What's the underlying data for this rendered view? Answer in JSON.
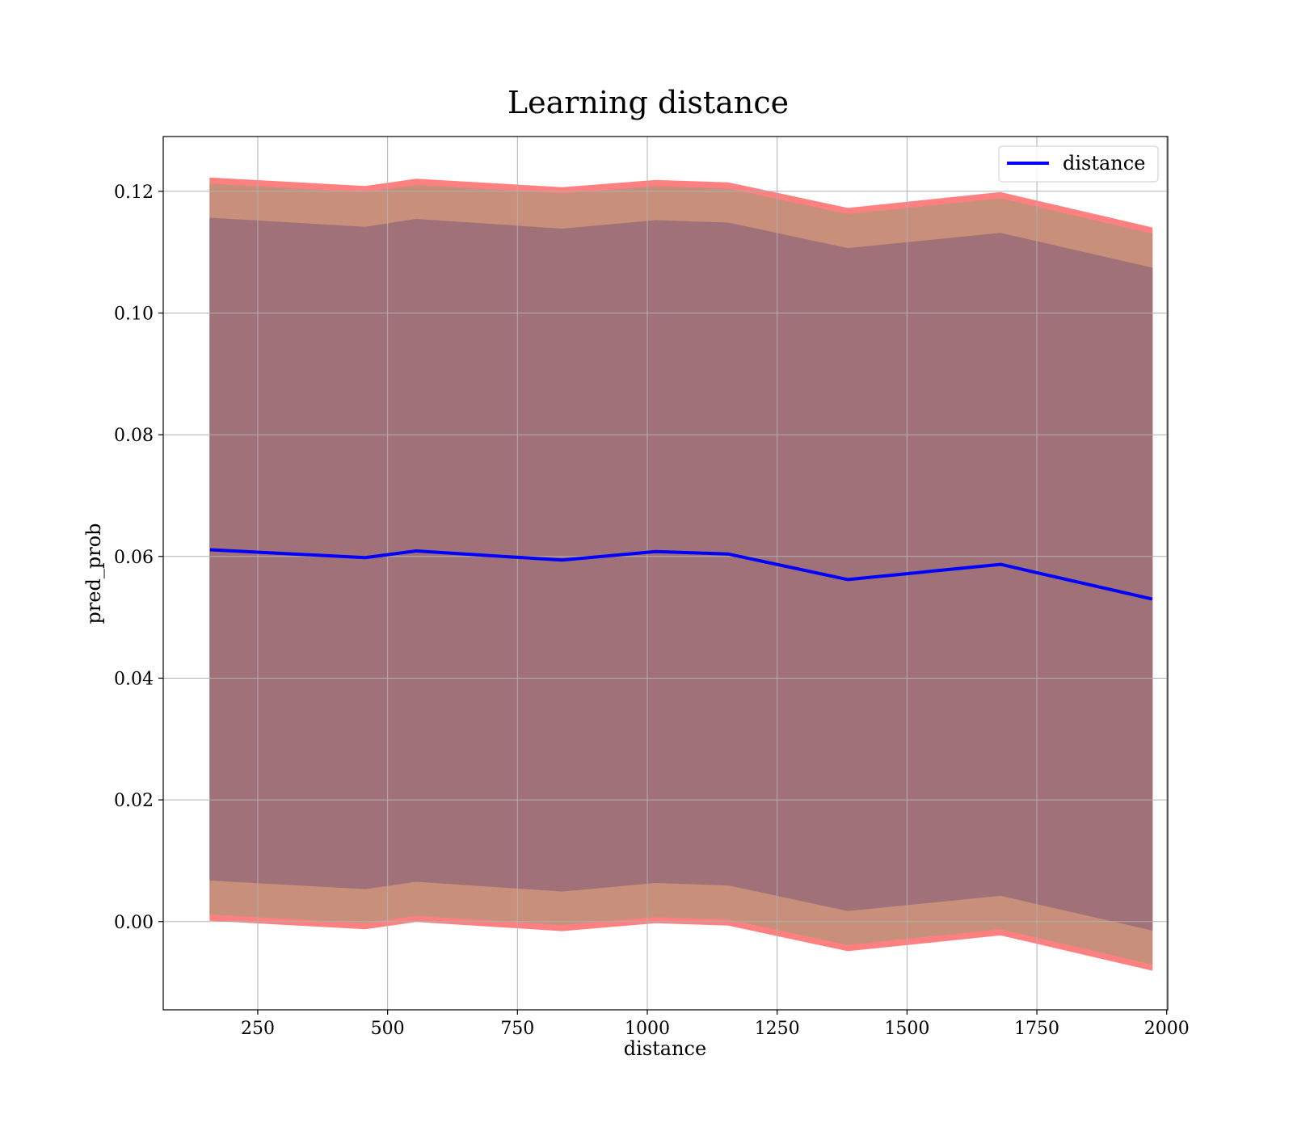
{
  "chart_data": {
    "type": "line",
    "title": "Learning distance",
    "xlabel": "distance",
    "ylabel": "pred_prob",
    "xlim": [
      68,
      2002
    ],
    "ylim": [
      -0.0145,
      0.129
    ],
    "xticks": [
      250,
      500,
      750,
      1000,
      1250,
      1500,
      1750,
      2000
    ],
    "xtick_labels": [
      "250",
      "500",
      "750",
      "1000",
      "1250",
      "1500",
      "1750",
      "2000"
    ],
    "yticks": [
      0.0,
      0.02,
      0.04,
      0.06,
      0.08,
      0.1,
      0.12
    ],
    "ytick_labels": [
      "0.00",
      "0.02",
      "0.04",
      "0.06",
      "0.08",
      "0.10",
      "0.12"
    ],
    "grid": true,
    "legend_position": "top-right",
    "x": [
      158,
      457,
      555,
      836,
      1016,
      1156,
      1386,
      1680,
      1972
    ],
    "series": [
      {
        "name": "distance",
        "color": "#0000ff",
        "values": [
          0.0611,
          0.0598,
          0.0609,
          0.0594,
          0.0608,
          0.0604,
          0.0562,
          0.0587,
          0.053
        ]
      }
    ],
    "bands": [
      {
        "color": "#ff8080",
        "upper": [
          0.1222,
          0.1208,
          0.122,
          0.1206,
          0.1218,
          0.1214,
          0.1172,
          0.1198,
          0.114
        ],
        "lower": [
          0.0002,
          -0.0012,
          0.0,
          -0.0015,
          -0.0002,
          -0.0006,
          -0.0048,
          -0.0022,
          -0.008
        ]
      },
      {
        "color": "#c8907a",
        "upper": [
          0.1212,
          0.1198,
          0.121,
          0.1196,
          0.1208,
          0.1204,
          0.1162,
          0.1188,
          0.113
        ],
        "lower": [
          0.0012,
          -0.0002,
          0.001,
          -0.0005,
          0.0008,
          0.0004,
          -0.0038,
          -0.0012,
          -0.007
        ]
      },
      {
        "color": "#a1717a",
        "upper": [
          0.1156,
          0.1141,
          0.1154,
          0.1138,
          0.1152,
          0.1148,
          0.1106,
          0.1131,
          0.1074
        ],
        "lower": [
          0.0068,
          0.0054,
          0.0066,
          0.005,
          0.0064,
          0.006,
          0.0018,
          0.0043,
          -0.0014
        ]
      }
    ]
  }
}
